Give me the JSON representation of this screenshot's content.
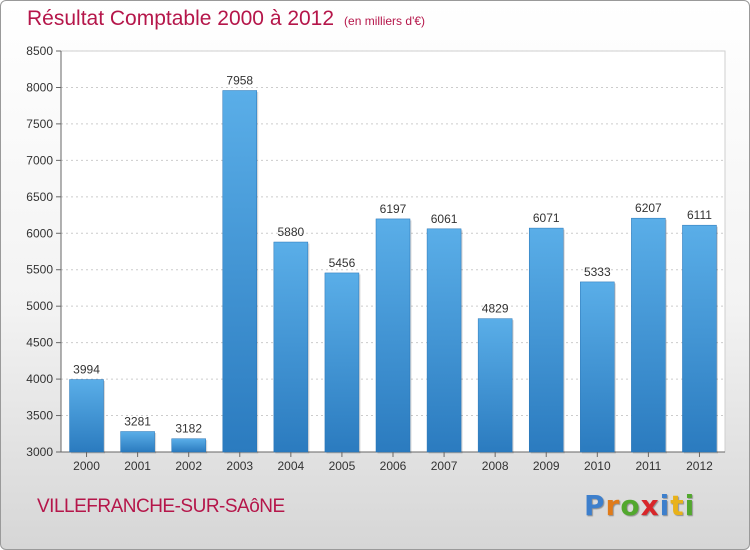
{
  "title": "Résultat Comptable 2000 à 2012",
  "subtitle": "(en milliers d'€)",
  "city": "VILLEFRANCHE-SUR-SAôNE",
  "logo": {
    "letters": [
      {
        "ch": "P",
        "color": "#3d7fcc"
      },
      {
        "ch": "r",
        "color": "#e07b1a"
      },
      {
        "ch": "o",
        "color": "#52a82e"
      },
      {
        "ch": "x",
        "color": "#d8262a"
      },
      {
        "ch": "i",
        "color": "#3d7fcc"
      },
      {
        "ch": "t",
        "color": "#e8b21a"
      },
      {
        "ch": "i",
        "color": "#52a82e"
      }
    ]
  },
  "colors": {
    "bar_light": "#5aaee8",
    "bar_dark": "#2b7bbf",
    "title": "#b5164a"
  },
  "chart_data": {
    "type": "bar",
    "title": "Résultat Comptable 2000 à 2012",
    "categories": [
      "2000",
      "2001",
      "2002",
      "2003",
      "2004",
      "2005",
      "2006",
      "2007",
      "2008",
      "2009",
      "2010",
      "2011",
      "2012"
    ],
    "values": [
      3994,
      3281,
      3182,
      7958,
      5880,
      5456,
      6197,
      6061,
      4829,
      6071,
      5333,
      6207,
      6111
    ],
    "ylim": [
      3000,
      8500
    ],
    "yticks": [
      3000,
      3500,
      4000,
      4500,
      5000,
      5500,
      6000,
      6500,
      7000,
      7500,
      8000,
      8500
    ],
    "xlabel": "",
    "ylabel": "",
    "grid": true
  }
}
